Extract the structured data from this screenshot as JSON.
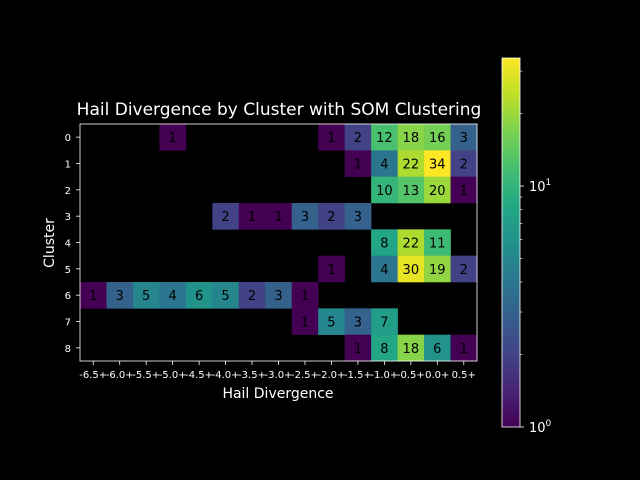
{
  "chart_data": {
    "type": "heatmap",
    "title": "Hail Divergence by Cluster with SOM Clustering",
    "xlabel": "Hail Divergence",
    "ylabel": "Cluster",
    "x_categories": [
      "-6.5+",
      "-6.0+",
      "-5.5+",
      "-5.0+",
      "-4.5+",
      "-4.0+",
      "-3.5+",
      "-3.0+",
      "-2.5+",
      "-2.0+",
      "-1.5+",
      "-1.0+",
      "-0.5+",
      "0.0+",
      "0.5+"
    ],
    "y_categories": [
      "0",
      "1",
      "2",
      "3",
      "4",
      "5",
      "6",
      "7",
      "8"
    ],
    "values": [
      [
        null,
        null,
        null,
        1,
        null,
        null,
        null,
        null,
        null,
        1,
        2,
        12,
        18,
        16,
        3
      ],
      [
        null,
        null,
        null,
        null,
        null,
        null,
        null,
        null,
        null,
        null,
        1,
        4,
        22,
        34,
        2
      ],
      [
        null,
        null,
        null,
        null,
        null,
        null,
        null,
        null,
        null,
        null,
        null,
        10,
        13,
        20,
        1
      ],
      [
        null,
        null,
        null,
        null,
        null,
        2,
        1,
        1,
        3,
        2,
        3,
        null,
        null,
        null,
        null
      ],
      [
        null,
        null,
        null,
        null,
        null,
        null,
        null,
        null,
        null,
        null,
        null,
        8,
        22,
        11,
        null
      ],
      [
        null,
        null,
        null,
        null,
        null,
        null,
        null,
        null,
        null,
        1,
        null,
        4,
        30,
        19,
        2
      ],
      [
        1,
        3,
        5,
        4,
        6,
        5,
        2,
        3,
        1,
        null,
        null,
        null,
        null,
        null,
        null
      ],
      [
        null,
        null,
        null,
        null,
        null,
        null,
        null,
        null,
        1,
        5,
        3,
        7,
        null,
        null,
        null
      ],
      [
        null,
        null,
        null,
        null,
        null,
        null,
        null,
        null,
        null,
        null,
        1,
        8,
        18,
        6,
        1
      ]
    ],
    "color_scale": "log",
    "colormap": "viridis",
    "colorbar_range": [
      1,
      34
    ],
    "colorbar_ticks": [
      {
        "base": "10",
        "exp": "0",
        "value": 1
      },
      {
        "base": "10",
        "exp": "1",
        "value": 10
      }
    ],
    "background_color": "#000000",
    "grid": false
  }
}
